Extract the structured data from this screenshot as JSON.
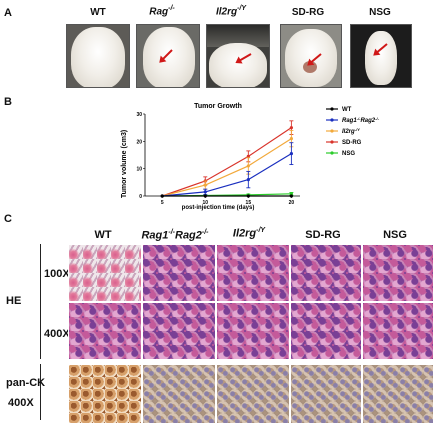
{
  "panels": {
    "a": "A",
    "b": "B",
    "c": "C"
  },
  "photos": [
    {
      "label": "WT",
      "label_html": "WT"
    },
    {
      "label": "Rag-/-",
      "base": "Rag",
      "sup": "-/-"
    },
    {
      "label": "Il2rg-/Y",
      "base": "Il2rg",
      "sup": "-/Y"
    },
    {
      "label": "SD-RG"
    },
    {
      "label": "NSG"
    }
  ],
  "chart_data": {
    "type": "line",
    "title": "Tumor Growth",
    "xlabel": "post-injection time (days)",
    "ylabel": "Tumor volume (cm3)",
    "x": [
      5,
      10,
      15,
      20
    ],
    "xlim": [
      3,
      21
    ],
    "ylim": [
      0,
      30
    ],
    "yticks": [
      0,
      10,
      20,
      30
    ],
    "series": [
      {
        "name": "WT",
        "color": "#000000",
        "values": [
          0,
          0,
          0,
          0
        ],
        "err": [
          0,
          0,
          0,
          0
        ]
      },
      {
        "name": "Rag1-/-Rag2-/-",
        "color": "#1a2fbf",
        "values": [
          0,
          1.5,
          6,
          15.5
        ],
        "err": [
          0,
          1,
          3,
          4
        ]
      },
      {
        "name": "Il2rg-/Y",
        "color": "#f2a93b",
        "values": [
          0,
          4,
          11,
          21
        ],
        "err": [
          0,
          1.5,
          3,
          3
        ]
      },
      {
        "name": "SD-RG",
        "color": "#d9342b",
        "values": [
          0,
          5.5,
          14.5,
          25
        ],
        "err": [
          0,
          1.5,
          2,
          2.5
        ]
      },
      {
        "name": "NSG",
        "color": "#2bcc2b",
        "values": [
          0,
          0.2,
          0.4,
          0.8
        ],
        "err": [
          0,
          0.2,
          0.3,
          0.5
        ]
      }
    ]
  },
  "histology": {
    "columns": [
      {
        "label": "WT"
      },
      {
        "label": "Rag1-/-Rag2-/-",
        "parts": [
          "Rag1",
          "-/-",
          "Rag2",
          "-/-"
        ]
      },
      {
        "label": "Il2rg-/Y",
        "parts": [
          "Il2rg",
          "-/Y"
        ]
      },
      {
        "label": "SD-RG"
      },
      {
        "label": "NSG"
      }
    ],
    "stain_he": "HE",
    "mag_100": "100X",
    "mag_400": "400X",
    "stain_ck": "pan-CK",
    "mag_ck": "400X"
  },
  "colors": {
    "he_pink": "#c45a9a",
    "he_purple": "#7a3f95",
    "ck_tan": "#b99a80",
    "ck_brown": "#9a5a2e"
  }
}
